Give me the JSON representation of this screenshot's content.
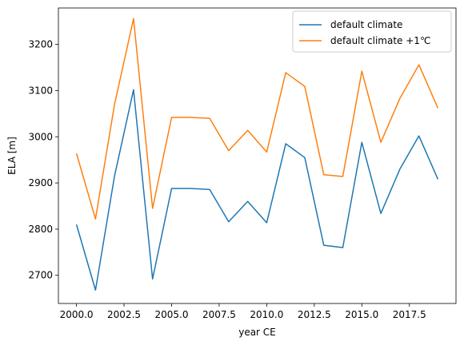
{
  "chart_data": {
    "type": "line",
    "title": "",
    "xlabel": "year CE",
    "ylabel": "ELA [m]",
    "xlim": [
      1999.05,
      2019.95
    ],
    "ylim": [
      2639,
      3279
    ],
    "x_ticks": [
      2000.0,
      2002.5,
      2005.0,
      2007.5,
      2010.0,
      2012.5,
      2015.0,
      2017.5
    ],
    "x_tick_labels": [
      "2000.0",
      "2002.5",
      "2005.0",
      "2007.5",
      "2010.0",
      "2012.5",
      "2015.0",
      "2017.5"
    ],
    "y_ticks": [
      2700,
      2800,
      2900,
      3000,
      3100,
      3200
    ],
    "y_tick_labels": [
      "2700",
      "2800",
      "2900",
      "3000",
      "3100",
      "3200"
    ],
    "grid": false,
    "legend_position": "top-right",
    "x": [
      2000,
      2001,
      2002,
      2003,
      2004,
      2005,
      2006,
      2007,
      2008,
      2009,
      2010,
      2011,
      2012,
      2013,
      2014,
      2015,
      2016,
      2017,
      2018,
      2019
    ],
    "series": [
      {
        "name": "default climate",
        "color": "#1f77b4",
        "values": [
          2810,
          2668,
          2915,
          3102,
          2692,
          2888,
          2888,
          2886,
          2816,
          2860,
          2814,
          2985,
          2955,
          2765,
          2760,
          2988,
          2834,
          2930,
          3002,
          2908
        ]
      },
      {
        "name": "default climate +1℃",
        "color": "#ff7f0e",
        "values": [
          2964,
          2822,
          3070,
          3256,
          2845,
          3042,
          3042,
          3040,
          2970,
          3014,
          2967,
          3139,
          3109,
          2918,
          2914,
          3142,
          2988,
          3083,
          3156,
          3062
        ]
      }
    ]
  }
}
